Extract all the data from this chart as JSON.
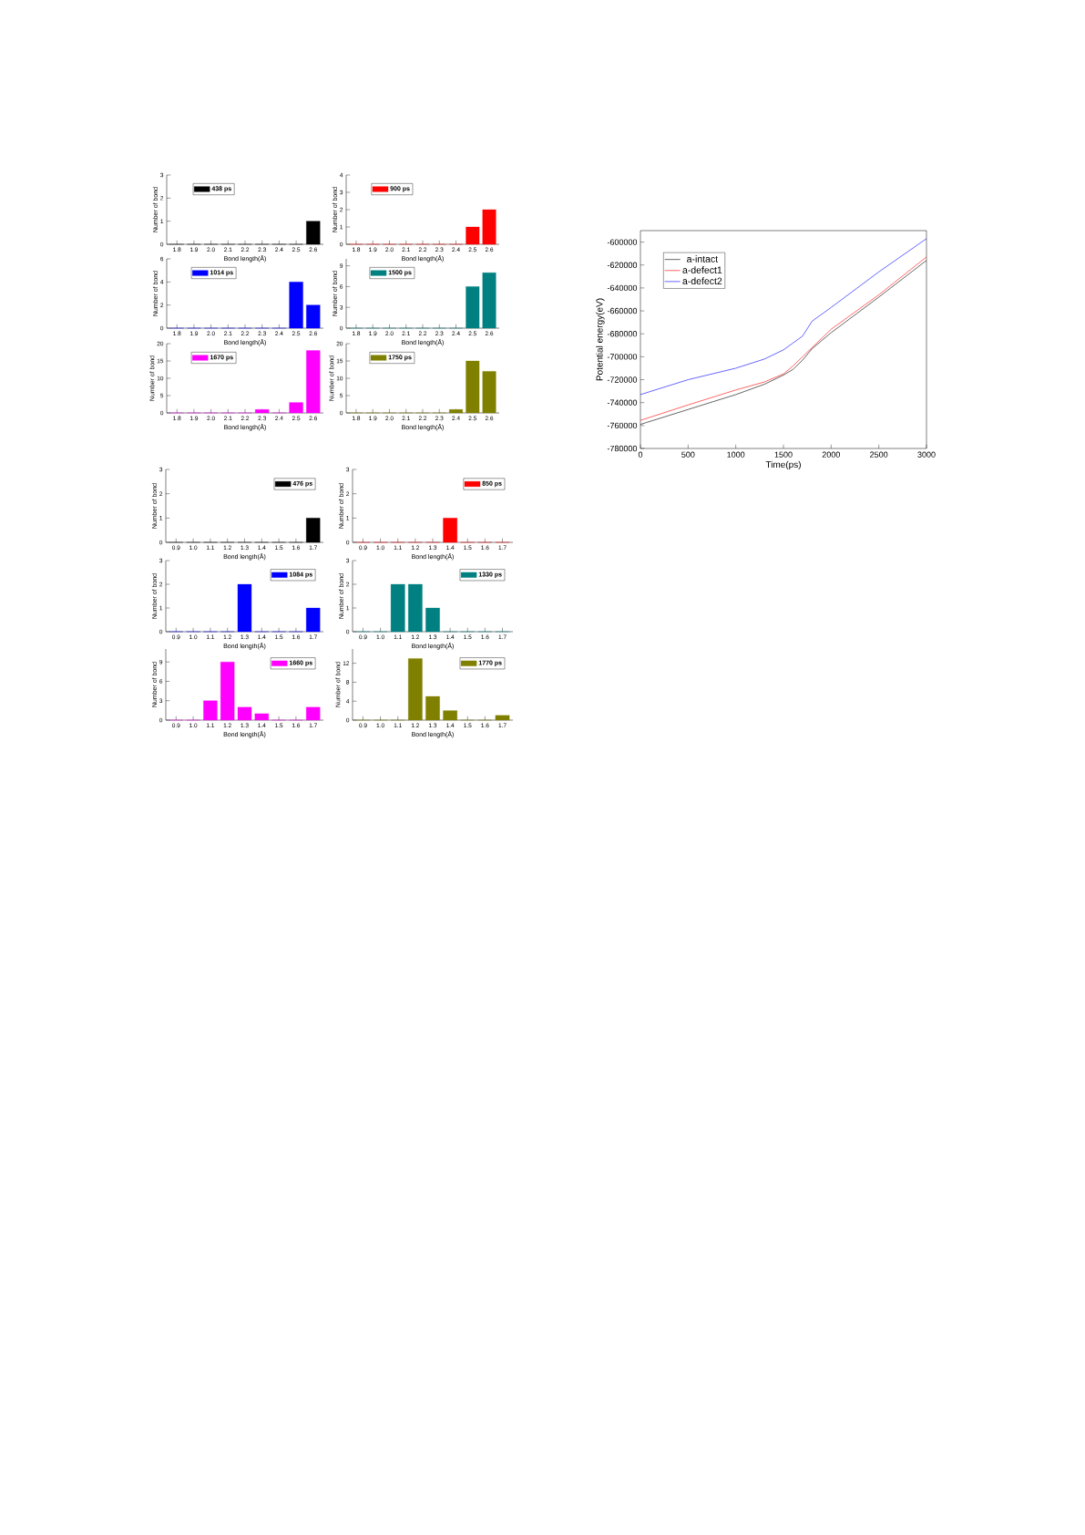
{
  "chart_data": [
    {
      "type": "bar",
      "xlabel": "Bond length(Å)",
      "ylabel": "Number of bond",
      "categories": [
        "1.8",
        "1.9",
        "2.0",
        "2.1",
        "2.2",
        "2.3",
        "2.4",
        "2.5",
        "2.6"
      ],
      "ylim": [
        0,
        3
      ],
      "yticks": [
        0,
        1,
        2,
        3
      ],
      "legend": "top",
      "series": [
        {
          "name": "438 ps",
          "color": "#000000",
          "values": [
            0,
            0,
            0,
            0,
            0,
            0,
            0,
            0,
            1
          ]
        }
      ]
    },
    {
      "type": "bar",
      "xlabel": "Bond length(Å)",
      "ylabel": "Number of bond",
      "categories": [
        "1.8",
        "1.9",
        "2.0",
        "2.1",
        "2.2",
        "2.3",
        "2.4",
        "2.5",
        "2.6"
      ],
      "ylim": [
        0,
        4
      ],
      "yticks": [
        0,
        1,
        2,
        3,
        4
      ],
      "legend": "top",
      "series": [
        {
          "name": "900 ps",
          "color": "#ff0000",
          "values": [
            0,
            0,
            0,
            0,
            0,
            0,
            0,
            1,
            2
          ]
        }
      ]
    },
    {
      "type": "bar",
      "xlabel": "Bond length(Å)",
      "ylabel": "Number of bond",
      "categories": [
        "1.8",
        "1.9",
        "2.0",
        "2.1",
        "2.2",
        "2.3",
        "2.4",
        "2.5",
        "2.6"
      ],
      "ylim": [
        0,
        6
      ],
      "yticks": [
        0,
        2,
        4,
        6
      ],
      "legend": "top",
      "series": [
        {
          "name": "1014 ps",
          "color": "#0000ff",
          "values": [
            0,
            0,
            0,
            0,
            0,
            0,
            0,
            4,
            2
          ]
        }
      ]
    },
    {
      "type": "bar",
      "xlabel": "Bond length(Å)",
      "ylabel": "Number of bond",
      "categories": [
        "1.8",
        "1.9",
        "2.0",
        "2.1",
        "2.2",
        "2.3",
        "2.4",
        "2.5",
        "2.6"
      ],
      "ylim": [
        0,
        10
      ],
      "yticks": [
        0,
        3,
        6,
        9
      ],
      "legend": "top",
      "series": [
        {
          "name": "1500 ps",
          "color": "#008080",
          "values": [
            0,
            0,
            0,
            0,
            0,
            0,
            0,
            6,
            8
          ]
        }
      ]
    },
    {
      "type": "bar",
      "xlabel": "Bond length(Å)",
      "ylabel": "Number of bond",
      "categories": [
        "1.8",
        "1.9",
        "2.0",
        "2.1",
        "2.2",
        "2.3",
        "2.4",
        "2.5",
        "2.6"
      ],
      "ylim": [
        0,
        20
      ],
      "yticks": [
        0,
        5,
        10,
        15,
        20
      ],
      "legend": "top",
      "series": [
        {
          "name": "1670 ps",
          "color": "#ff00ff",
          "values": [
            0,
            0,
            0,
            0,
            0,
            1,
            0,
            3,
            18
          ]
        }
      ]
    },
    {
      "type": "bar",
      "xlabel": "Bond length(Å)",
      "ylabel": "Number of bond",
      "categories": [
        "1.8",
        "1.9",
        "2.0",
        "2.1",
        "2.2",
        "2.3",
        "2.4",
        "2.5",
        "2.6"
      ],
      "ylim": [
        0,
        20
      ],
      "yticks": [
        0,
        5,
        10,
        15,
        20
      ],
      "legend": "top",
      "series": [
        {
          "name": "1750 ps",
          "color": "#808000",
          "values": [
            0,
            0,
            0,
            0,
            0,
            0,
            1,
            15,
            12
          ]
        }
      ]
    },
    {
      "type": "bar",
      "xlabel": "Bond length(Å)",
      "ylabel": "Number of bond",
      "categories": [
        "0.9",
        "1.0",
        "1.1",
        "1.2",
        "1.3",
        "1.4",
        "1.5",
        "1.6",
        "1.7"
      ],
      "ylim": [
        0,
        3
      ],
      "yticks": [
        0,
        1,
        2,
        3
      ],
      "legend": "top right",
      "series": [
        {
          "name": "476 ps",
          "color": "#000000",
          "values": [
            0,
            0,
            0,
            0,
            0,
            0,
            0,
            0,
            1
          ]
        }
      ]
    },
    {
      "type": "bar",
      "xlabel": "Bond length(Å)",
      "ylabel": "Number of bond",
      "categories": [
        "0.9",
        "1.0",
        "1.1",
        "1.2",
        "1.3",
        "1.4",
        "1.5",
        "1.6",
        "1.7"
      ],
      "ylim": [
        0,
        3
      ],
      "yticks": [
        0,
        1,
        2,
        3
      ],
      "legend": "top right",
      "series": [
        {
          "name": "850 ps",
          "color": "#ff0000",
          "values": [
            0,
            0,
            0,
            0,
            0,
            1,
            0,
            0,
            0
          ]
        }
      ]
    },
    {
      "type": "bar",
      "xlabel": "Bond length(Å)",
      "ylabel": "Number of bond",
      "categories": [
        "0.9",
        "1.0",
        "1.1",
        "1.2",
        "1.3",
        "1.4",
        "1.5",
        "1.6",
        "1.7"
      ],
      "ylim": [
        0,
        3
      ],
      "yticks": [
        0,
        1,
        2,
        3
      ],
      "legend": "top right",
      "series": [
        {
          "name": "1084 ps",
          "color": "#0000ff",
          "values": [
            0,
            0,
            0,
            0,
            2,
            0,
            0,
            0,
            1
          ]
        }
      ]
    },
    {
      "type": "bar",
      "xlabel": "Bond length(Å)",
      "ylabel": "Number of bond",
      "categories": [
        "0.9",
        "1.0",
        "1.1",
        "1.2",
        "1.3",
        "1.4",
        "1.5",
        "1.6",
        "1.7"
      ],
      "ylim": [
        0,
        3
      ],
      "yticks": [
        0,
        1,
        2,
        3
      ],
      "legend": "top right",
      "series": [
        {
          "name": "1330 ps",
          "color": "#008080",
          "values": [
            0,
            0,
            2,
            2,
            1,
            0,
            0,
            0,
            0
          ]
        }
      ]
    },
    {
      "type": "bar",
      "xlabel": "Bond length(Å)",
      "ylabel": "Number of bond",
      "categories": [
        "0.9",
        "1.0",
        "1.1",
        "1.2",
        "1.3",
        "1.4",
        "1.5",
        "1.6",
        "1.7"
      ],
      "ylim": [
        0,
        11
      ],
      "yticks": [
        0,
        3,
        6,
        9
      ],
      "legend": "top right",
      "series": [
        {
          "name": "1660 ps",
          "color": "#ff00ff",
          "values": [
            0,
            0,
            3,
            9,
            2,
            1,
            0,
            0,
            2
          ]
        }
      ]
    },
    {
      "type": "bar",
      "xlabel": "Bond length(Å)",
      "ylabel": "Number of bond",
      "categories": [
        "0.9",
        "1.0",
        "1.1",
        "1.2",
        "1.3",
        "1.4",
        "1.5",
        "1.6",
        "1.7"
      ],
      "ylim": [
        0,
        15
      ],
      "yticks": [
        0,
        4,
        8,
        12
      ],
      "legend": "top right",
      "series": [
        {
          "name": "1770 ps",
          "color": "#808000",
          "values": [
            0,
            0,
            0,
            13,
            5,
            2,
            0,
            0,
            1
          ]
        }
      ]
    },
    {
      "type": "line",
      "xlabel": "Time(ps)",
      "ylabel": "Potential energy(eV)",
      "x": [
        0,
        500,
        1000,
        1300,
        1500,
        1600,
        1700,
        1800,
        2000,
        2500,
        3000
      ],
      "xlim": [
        0,
        3000
      ],
      "xticks": [
        0,
        500,
        1000,
        1500,
        2000,
        2500,
        3000
      ],
      "ylim": [
        -780000,
        -590000
      ],
      "yticks": [
        -780000,
        -760000,
        -740000,
        -720000,
        -700000,
        -680000,
        -660000,
        -640000,
        -620000,
        -600000
      ],
      "legend": "top left",
      "series": [
        {
          "name": "a-intact",
          "color": "#000000",
          "values": [
            -759000,
            -746000,
            -733000,
            -724000,
            -716000,
            -711000,
            -703000,
            -693000,
            -679000,
            -648000,
            -616000
          ]
        },
        {
          "name": "a-defect1",
          "color": "#ff0000",
          "values": [
            -755500,
            -742000,
            -729000,
            -722000,
            -715000,
            -708000,
            -700000,
            -692000,
            -676000,
            -646000,
            -613000
          ]
        },
        {
          "name": "a-defect2",
          "color": "#0000ff",
          "values": [
            -733000,
            -720000,
            -710000,
            -702000,
            -694000,
            -688000,
            -682000,
            -669000,
            -657000,
            -626000,
            -597000
          ]
        }
      ]
    }
  ]
}
